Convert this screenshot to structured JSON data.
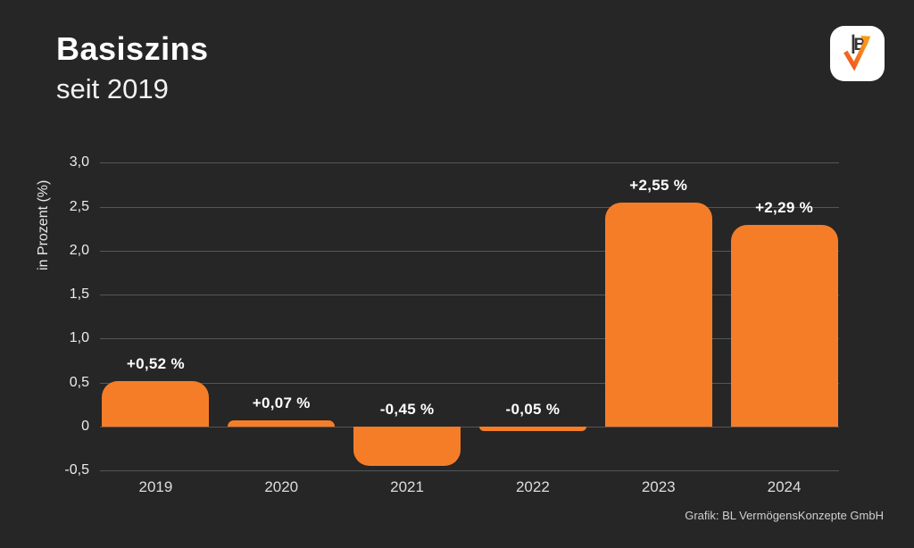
{
  "page": {
    "background_color": "#262626",
    "accent_color": "#f67d28"
  },
  "header": {
    "title": "Basiszins",
    "subtitle": "seit 2019"
  },
  "logo": {
    "name": "BL VermögensKonzepte",
    "monogram": "B",
    "square_color": "#ffffff",
    "arrow_color_start": "#ee541e",
    "arrow_color_end": "#f9991c"
  },
  "footer": {
    "attribution": "Grafik: BL VermögensKonzepte GmbH"
  },
  "chart_data": {
    "type": "bar",
    "title": "Basiszins seit 2019",
    "categories": [
      "2019",
      "2020",
      "2021",
      "2022",
      "2023",
      "2024"
    ],
    "values": [
      0.52,
      0.07,
      -0.45,
      -0.05,
      2.55,
      2.29
    ],
    "bar_labels": [
      "+0,52 %",
      "+0,07 %",
      "-0,45 %",
      "-0,05 %",
      "+2,55 %",
      "+2,29 %"
    ],
    "xlabel": "",
    "ylabel": "in Prozent (%)",
    "ylim": [
      -0.5,
      3.0
    ],
    "yticks": [
      3.0,
      2.5,
      2.0,
      1.5,
      1.0,
      0.5,
      0,
      -0.5
    ],
    "ytick_labels": [
      "3,0",
      "2,5",
      "2,0",
      "1,5",
      "1,0",
      "0,5",
      "0",
      "-0,5"
    ],
    "grid": true,
    "legend": false,
    "bar_color": "#f67d28",
    "gridline_color": "#565656"
  }
}
